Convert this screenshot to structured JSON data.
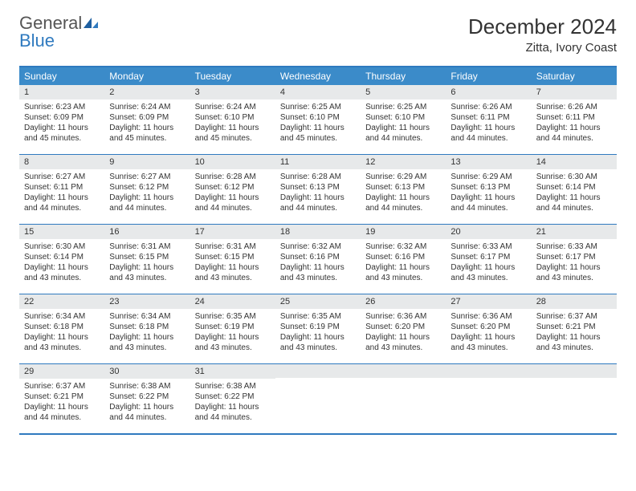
{
  "logo": {
    "word1": "General",
    "word2": "Blue"
  },
  "header": {
    "title": "December 2024",
    "location": "Zitta, Ivory Coast"
  },
  "colors": {
    "accent": "#2f7abf",
    "header_bg": "#3b8bc9",
    "daynum_bg": "#e7e9ea",
    "text": "#333333",
    "page_bg": "#ffffff"
  },
  "dayNames": [
    "Sunday",
    "Monday",
    "Tuesday",
    "Wednesday",
    "Thursday",
    "Friday",
    "Saturday"
  ],
  "weeks": [
    [
      {
        "n": "1",
        "sr": "Sunrise: 6:23 AM",
        "ss": "Sunset: 6:09 PM",
        "d1": "Daylight: 11 hours",
        "d2": "and 45 minutes."
      },
      {
        "n": "2",
        "sr": "Sunrise: 6:24 AM",
        "ss": "Sunset: 6:09 PM",
        "d1": "Daylight: 11 hours",
        "d2": "and 45 minutes."
      },
      {
        "n": "3",
        "sr": "Sunrise: 6:24 AM",
        "ss": "Sunset: 6:10 PM",
        "d1": "Daylight: 11 hours",
        "d2": "and 45 minutes."
      },
      {
        "n": "4",
        "sr": "Sunrise: 6:25 AM",
        "ss": "Sunset: 6:10 PM",
        "d1": "Daylight: 11 hours",
        "d2": "and 45 minutes."
      },
      {
        "n": "5",
        "sr": "Sunrise: 6:25 AM",
        "ss": "Sunset: 6:10 PM",
        "d1": "Daylight: 11 hours",
        "d2": "and 44 minutes."
      },
      {
        "n": "6",
        "sr": "Sunrise: 6:26 AM",
        "ss": "Sunset: 6:11 PM",
        "d1": "Daylight: 11 hours",
        "d2": "and 44 minutes."
      },
      {
        "n": "7",
        "sr": "Sunrise: 6:26 AM",
        "ss": "Sunset: 6:11 PM",
        "d1": "Daylight: 11 hours",
        "d2": "and 44 minutes."
      }
    ],
    [
      {
        "n": "8",
        "sr": "Sunrise: 6:27 AM",
        "ss": "Sunset: 6:11 PM",
        "d1": "Daylight: 11 hours",
        "d2": "and 44 minutes."
      },
      {
        "n": "9",
        "sr": "Sunrise: 6:27 AM",
        "ss": "Sunset: 6:12 PM",
        "d1": "Daylight: 11 hours",
        "d2": "and 44 minutes."
      },
      {
        "n": "10",
        "sr": "Sunrise: 6:28 AM",
        "ss": "Sunset: 6:12 PM",
        "d1": "Daylight: 11 hours",
        "d2": "and 44 minutes."
      },
      {
        "n": "11",
        "sr": "Sunrise: 6:28 AM",
        "ss": "Sunset: 6:13 PM",
        "d1": "Daylight: 11 hours",
        "d2": "and 44 minutes."
      },
      {
        "n": "12",
        "sr": "Sunrise: 6:29 AM",
        "ss": "Sunset: 6:13 PM",
        "d1": "Daylight: 11 hours",
        "d2": "and 44 minutes."
      },
      {
        "n": "13",
        "sr": "Sunrise: 6:29 AM",
        "ss": "Sunset: 6:13 PM",
        "d1": "Daylight: 11 hours",
        "d2": "and 44 minutes."
      },
      {
        "n": "14",
        "sr": "Sunrise: 6:30 AM",
        "ss": "Sunset: 6:14 PM",
        "d1": "Daylight: 11 hours",
        "d2": "and 44 minutes."
      }
    ],
    [
      {
        "n": "15",
        "sr": "Sunrise: 6:30 AM",
        "ss": "Sunset: 6:14 PM",
        "d1": "Daylight: 11 hours",
        "d2": "and 43 minutes."
      },
      {
        "n": "16",
        "sr": "Sunrise: 6:31 AM",
        "ss": "Sunset: 6:15 PM",
        "d1": "Daylight: 11 hours",
        "d2": "and 43 minutes."
      },
      {
        "n": "17",
        "sr": "Sunrise: 6:31 AM",
        "ss": "Sunset: 6:15 PM",
        "d1": "Daylight: 11 hours",
        "d2": "and 43 minutes."
      },
      {
        "n": "18",
        "sr": "Sunrise: 6:32 AM",
        "ss": "Sunset: 6:16 PM",
        "d1": "Daylight: 11 hours",
        "d2": "and 43 minutes."
      },
      {
        "n": "19",
        "sr": "Sunrise: 6:32 AM",
        "ss": "Sunset: 6:16 PM",
        "d1": "Daylight: 11 hours",
        "d2": "and 43 minutes."
      },
      {
        "n": "20",
        "sr": "Sunrise: 6:33 AM",
        "ss": "Sunset: 6:17 PM",
        "d1": "Daylight: 11 hours",
        "d2": "and 43 minutes."
      },
      {
        "n": "21",
        "sr": "Sunrise: 6:33 AM",
        "ss": "Sunset: 6:17 PM",
        "d1": "Daylight: 11 hours",
        "d2": "and 43 minutes."
      }
    ],
    [
      {
        "n": "22",
        "sr": "Sunrise: 6:34 AM",
        "ss": "Sunset: 6:18 PM",
        "d1": "Daylight: 11 hours",
        "d2": "and 43 minutes."
      },
      {
        "n": "23",
        "sr": "Sunrise: 6:34 AM",
        "ss": "Sunset: 6:18 PM",
        "d1": "Daylight: 11 hours",
        "d2": "and 43 minutes."
      },
      {
        "n": "24",
        "sr": "Sunrise: 6:35 AM",
        "ss": "Sunset: 6:19 PM",
        "d1": "Daylight: 11 hours",
        "d2": "and 43 minutes."
      },
      {
        "n": "25",
        "sr": "Sunrise: 6:35 AM",
        "ss": "Sunset: 6:19 PM",
        "d1": "Daylight: 11 hours",
        "d2": "and 43 minutes."
      },
      {
        "n": "26",
        "sr": "Sunrise: 6:36 AM",
        "ss": "Sunset: 6:20 PM",
        "d1": "Daylight: 11 hours",
        "d2": "and 43 minutes."
      },
      {
        "n": "27",
        "sr": "Sunrise: 6:36 AM",
        "ss": "Sunset: 6:20 PM",
        "d1": "Daylight: 11 hours",
        "d2": "and 43 minutes."
      },
      {
        "n": "28",
        "sr": "Sunrise: 6:37 AM",
        "ss": "Sunset: 6:21 PM",
        "d1": "Daylight: 11 hours",
        "d2": "and 43 minutes."
      }
    ],
    [
      {
        "n": "29",
        "sr": "Sunrise: 6:37 AM",
        "ss": "Sunset: 6:21 PM",
        "d1": "Daylight: 11 hours",
        "d2": "and 44 minutes."
      },
      {
        "n": "30",
        "sr": "Sunrise: 6:38 AM",
        "ss": "Sunset: 6:22 PM",
        "d1": "Daylight: 11 hours",
        "d2": "and 44 minutes."
      },
      {
        "n": "31",
        "sr": "Sunrise: 6:38 AM",
        "ss": "Sunset: 6:22 PM",
        "d1": "Daylight: 11 hours",
        "d2": "and 44 minutes."
      },
      null,
      null,
      null,
      null
    ]
  ]
}
